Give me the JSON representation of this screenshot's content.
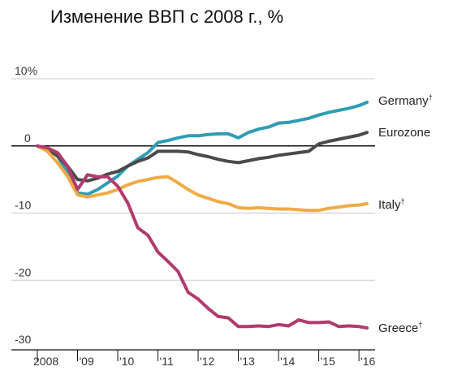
{
  "chart_data": {
    "type": "line",
    "title": "Изменение ВВП с 2008 г., %",
    "xlabel": "",
    "ylabel": "",
    "xlim": [
      2008,
      2016.2
    ],
    "ylim": [
      -30,
      10
    ],
    "y_ticks": [
      {
        "value": 10,
        "label": "10%"
      },
      {
        "value": 0,
        "label": "0"
      },
      {
        "value": -10,
        "label": "-10"
      },
      {
        "value": -20,
        "label": "-20"
      },
      {
        "value": -30,
        "label": "-30"
      }
    ],
    "x_ticks": [
      {
        "value": 2008,
        "label": "2008"
      },
      {
        "value": 2009,
        "label": "'09"
      },
      {
        "value": 2010,
        "label": "'10"
      },
      {
        "value": 2011,
        "label": "'11"
      },
      {
        "value": 2012,
        "label": "'12"
      },
      {
        "value": 2013,
        "label": "'13"
      },
      {
        "value": 2014,
        "label": "'14"
      },
      {
        "value": 2015,
        "label": "'15"
      },
      {
        "value": 2016,
        "label": "'16"
      }
    ],
    "grid": "horizontal",
    "legend": "line-end labels",
    "series": [
      {
        "name": "Germany",
        "footnote": "†",
        "color": "#2e9db3",
        "x": [
          2008,
          2008.25,
          2008.5,
          2008.75,
          2009,
          2009.25,
          2009.5,
          2009.75,
          2010,
          2010.25,
          2010.5,
          2010.75,
          2011,
          2011.25,
          2011.5,
          2011.75,
          2012,
          2012.25,
          2012.5,
          2012.75,
          2013,
          2013.25,
          2013.5,
          2013.75,
          2014,
          2014.25,
          2014.5,
          2014.75,
          2015,
          2015.25,
          2015.5,
          2015.75,
          2016,
          2016.2
        ],
        "y": [
          0,
          -0.5,
          -1.5,
          -4,
          -7,
          -7.2,
          -6.5,
          -5.5,
          -4.5,
          -3,
          -2,
          -1,
          0.5,
          0.8,
          1.2,
          1.5,
          1.5,
          1.7,
          1.8,
          1.8,
          1.2,
          2,
          2.5,
          2.8,
          3.4,
          3.5,
          3.8,
          4.1,
          4.6,
          5,
          5.3,
          5.6,
          6,
          6.5
        ]
      },
      {
        "name": "Eurozone",
        "footnote": "",
        "color": "#4a4a4a",
        "x": [
          2008,
          2008.25,
          2008.5,
          2008.75,
          2009,
          2009.25,
          2009.5,
          2009.75,
          2010,
          2010.25,
          2010.5,
          2010.75,
          2011,
          2011.25,
          2011.5,
          2011.75,
          2012,
          2012.25,
          2012.5,
          2012.75,
          2013,
          2013.25,
          2013.5,
          2013.75,
          2014,
          2014.25,
          2014.5,
          2014.75,
          2015,
          2015.25,
          2015.5,
          2015.75,
          2016,
          2016.2
        ],
        "y": [
          0,
          -0.5,
          -1.5,
          -3,
          -5,
          -5.2,
          -4.8,
          -4.2,
          -3.8,
          -3,
          -2.3,
          -1.8,
          -0.8,
          -0.8,
          -0.8,
          -0.9,
          -1.3,
          -1.6,
          -2,
          -2.3,
          -2.5,
          -2.2,
          -1.9,
          -1.7,
          -1.4,
          -1.2,
          -1,
          -0.8,
          0.3,
          0.7,
          1,
          1.3,
          1.6,
          2
        ]
      },
      {
        "name": "Italy",
        "footnote": "†",
        "color": "#f0ab45",
        "x": [
          2008,
          2008.25,
          2008.5,
          2008.75,
          2009,
          2009.25,
          2009.5,
          2009.75,
          2010,
          2010.25,
          2010.5,
          2010.75,
          2011,
          2011.25,
          2011.5,
          2011.75,
          2012,
          2012.25,
          2012.5,
          2012.75,
          2013,
          2013.25,
          2013.5,
          2013.75,
          2014,
          2014.25,
          2014.5,
          2014.75,
          2015,
          2015.25,
          2015.5,
          2015.75,
          2016,
          2016.2
        ],
        "y": [
          0,
          -0.8,
          -2.5,
          -4.5,
          -7.3,
          -7.6,
          -7.3,
          -7,
          -6.5,
          -5.8,
          -5.3,
          -5,
          -4.7,
          -4.6,
          -5.5,
          -6.5,
          -7.3,
          -7.8,
          -8.3,
          -8.6,
          -9.2,
          -9.3,
          -9.2,
          -9.3,
          -9.4,
          -9.4,
          -9.5,
          -9.6,
          -9.6,
          -9.3,
          -9.1,
          -8.9,
          -8.8,
          -8.6
        ]
      },
      {
        "name": "Greece",
        "footnote": "†",
        "color": "#b23a6e",
        "x": [
          2008,
          2008.25,
          2008.5,
          2008.75,
          2009,
          2009.25,
          2009.5,
          2009.75,
          2010,
          2010.25,
          2010.5,
          2010.75,
          2011,
          2011.25,
          2011.5,
          2011.75,
          2012,
          2012.25,
          2012.5,
          2012.75,
          2013,
          2013.25,
          2013.5,
          2013.75,
          2014,
          2014.25,
          2014.5,
          2014.75,
          2015,
          2015.25,
          2015.5,
          2015.75,
          2016,
          2016.2
        ],
        "y": [
          0,
          -0.3,
          -1,
          -3,
          -6.5,
          -4.3,
          -4.6,
          -4.6,
          -6,
          -8.5,
          -12.2,
          -13.3,
          -15.8,
          -17.2,
          -18.7,
          -21.8,
          -22.8,
          -24.2,
          -25.4,
          -25.6,
          -26.9,
          -26.9,
          -26.8,
          -26.9,
          -26.6,
          -26.8,
          -25.9,
          -26.3,
          -26.3,
          -26.2,
          -26.9,
          -26.8,
          -26.9,
          -27.1
        ]
      }
    ]
  }
}
